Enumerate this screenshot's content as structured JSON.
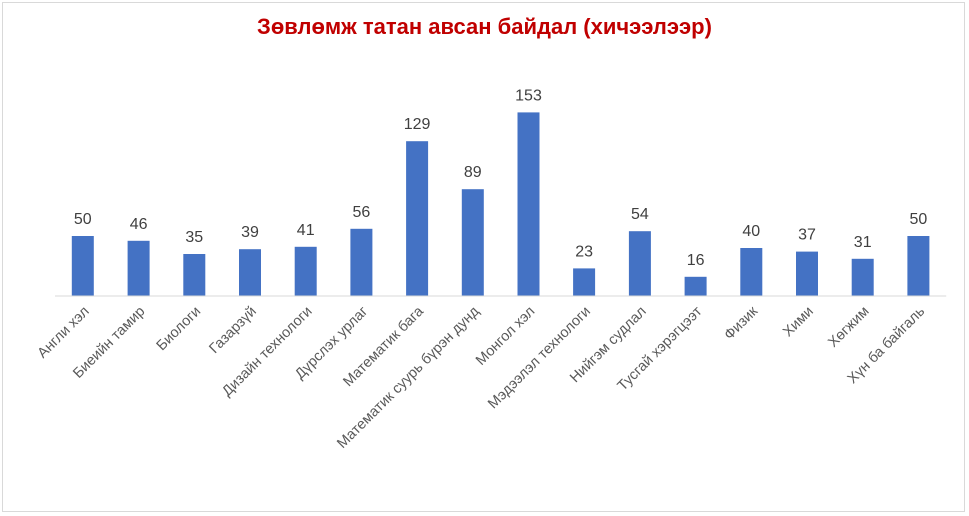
{
  "chart_data": {
    "type": "bar",
    "title": "Зөвлөмж татан авсан байдал (хичээлээр)",
    "categories": [
      "Англи хэл",
      "Биеийн тамир",
      "Биологи",
      "Газарзүй",
      "Дизайн технологи",
      "Дүрслэх урлаг",
      "Математик бага",
      "Математик суурь бүрэн дунд",
      "Монгол хэл",
      "Мэдээлэл технологи",
      "Нийгэм судлал",
      "Тусгай хэрэгцээт",
      "Физик",
      "Хими",
      "Хөгжим",
      "Хүн ба байгаль"
    ],
    "values": [
      50,
      46,
      35,
      39,
      41,
      56,
      129,
      89,
      153,
      23,
      54,
      16,
      40,
      37,
      31,
      50
    ],
    "ylim": [
      0,
      160
    ],
    "data_labels": true,
    "grid": false,
    "legend": "none",
    "colors": {
      "bar": "#4472c4",
      "title": "#c00000",
      "axis": "#d9d9d9",
      "label": "#404040"
    }
  }
}
